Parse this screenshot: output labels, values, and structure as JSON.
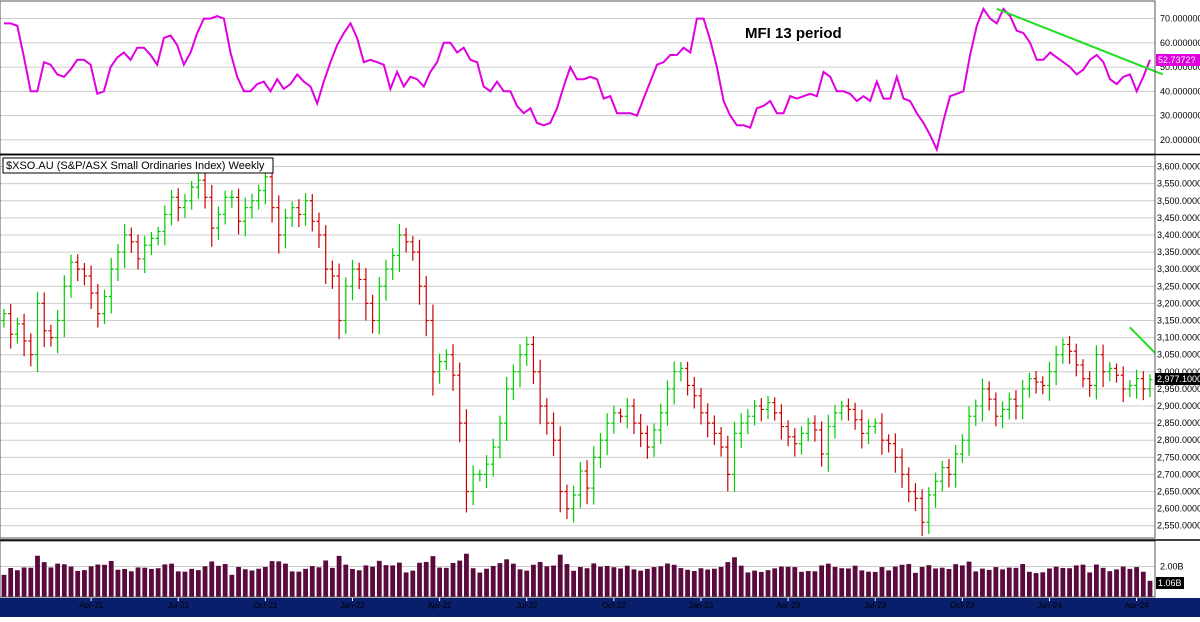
{
  "chart_data": [
    {
      "type": "line",
      "panel": "indicator",
      "title": "MFI 13 period",
      "y_ticks": [
        "70.000000",
        "60.000000",
        "50.000000",
        "40.000000",
        "30.000000",
        "20.000000"
      ],
      "y_tick_values": [
        70,
        60,
        50,
        40,
        30,
        20
      ],
      "ylim": [
        15,
        76
      ],
      "last_value_label": "52.7372?",
      "series": [
        {
          "color": "#e000e0",
          "values": [
            68,
            68,
            67,
            54,
            40,
            40,
            52,
            51,
            47,
            46,
            49,
            53,
            53,
            51,
            39,
            40,
            50,
            54,
            56,
            53,
            58,
            58,
            55,
            51,
            62,
            63,
            59,
            51,
            56,
            64,
            70,
            70,
            71,
            70,
            56,
            46,
            40,
            40,
            43,
            44,
            40,
            45,
            41,
            43,
            47,
            44,
            42,
            35,
            44,
            52,
            59,
            64,
            68,
            62,
            52,
            53,
            52,
            51,
            41,
            48,
            42,
            46,
            45,
            42,
            48,
            52,
            60,
            60,
            56,
            58,
            53,
            52,
            42,
            40,
            44,
            40,
            40,
            34,
            31,
            33,
            27,
            26,
            27,
            33,
            42,
            50,
            45,
            45,
            46,
            45,
            37,
            38,
            31,
            31,
            31,
            30,
            37,
            44,
            51,
            52,
            55,
            55,
            58,
            56,
            70,
            70,
            61,
            50,
            36,
            30,
            26,
            26,
            25,
            33,
            34,
            36,
            31,
            31,
            38,
            37,
            38,
            39,
            38,
            48,
            46,
            40,
            40,
            39,
            36,
            38,
            36,
            44,
            37,
            37,
            46,
            37,
            36,
            31,
            27,
            22,
            16,
            28,
            38,
            39,
            40,
            55,
            67,
            74,
            70,
            68,
            74,
            71,
            65,
            64,
            60,
            53,
            53,
            56,
            54,
            52,
            50,
            47,
            49,
            53,
            55,
            52,
            45,
            43,
            46,
            47,
            40,
            46,
            53
          ]
        },
        {
          "name": "",
          "type": "trendline",
          "color": "#22dd22",
          "x_index": [
            149,
            173
          ],
          "values": [
            74,
            47
          ]
        }
      ]
    },
    {
      "type": "ohlc",
      "panel": "price",
      "title": "$XSO.AU (S&P/ASX Small Ordinaries Index) Weekly",
      "y_ticks": [
        "3,600.0000",
        "3,550.0000",
        "3,500.0000",
        "3,450.0000",
        "3,400.0000",
        "3,350.0000",
        "3,300.0000",
        "3,250.0000",
        "3,200.0000",
        "3,150.0000",
        "3,100.0000",
        "3,050.0000",
        "3,000.0000",
        "2,950.0000",
        "2,900.0000",
        "2,850.0000",
        "2,800.0000",
        "2,750.0000",
        "2,700.0000",
        "2,650.0000",
        "2,600.0000",
        "2,550.0000"
      ],
      "y_tick_values": [
        3600,
        3550,
        3500,
        3450,
        3400,
        3350,
        3300,
        3250,
        3200,
        3150,
        3100,
        3050,
        3000,
        2950,
        2900,
        2850,
        2800,
        2750,
        2700,
        2650,
        2600,
        2550
      ],
      "ylim": [
        2520,
        3625
      ],
      "last_value_label": "2,977.1000",
      "last_value": 2977.1,
      "up_color": "#00cc00",
      "down_color": "#cc0000",
      "closes": [
        3170,
        3110,
        3140,
        3090,
        3050,
        3200,
        3120,
        3100,
        3150,
        3250,
        3320,
        3300,
        3280,
        3230,
        3170,
        3220,
        3300,
        3350,
        3400,
        3380,
        3330,
        3370,
        3390,
        3410,
        3460,
        3510,
        3480,
        3500,
        3540,
        3560,
        3510,
        3420,
        3460,
        3510,
        3510,
        3440,
        3480,
        3500,
        3530,
        3570,
        3480,
        3400,
        3450,
        3480,
        3460,
        3500,
        3440,
        3400,
        3300,
        3280,
        3150,
        3250,
        3300,
        3270,
        3200,
        3150,
        3250,
        3300,
        3340,
        3400,
        3380,
        3350,
        3250,
        3150,
        3000,
        3030,
        3050,
        2990,
        2850,
        2650,
        2700,
        2700,
        2730,
        2780,
        2850,
        2950,
        3000,
        3050,
        3080,
        3000,
        2900,
        2850,
        2800,
        2650,
        2600,
        2640,
        2710,
        2660,
        2750,
        2800,
        2850,
        2880,
        2870,
        2900,
        2850,
        2820,
        2780,
        2830,
        2880,
        2950,
        3000,
        3010,
        2960,
        2930,
        2880,
        2850,
        2820,
        2780,
        2700,
        2820,
        2850,
        2870,
        2900,
        2890,
        2910,
        2880,
        2840,
        2810,
        2790,
        2820,
        2850,
        2830,
        2760,
        2840,
        2880,
        2900,
        2890,
        2860,
        2820,
        2840,
        2850,
        2800,
        2790,
        2750,
        2700,
        2650,
        2630,
        2560,
        2640,
        2680,
        2720,
        2700,
        2760,
        2800,
        2870,
        2900,
        2950,
        2920,
        2870,
        2890,
        2920,
        2900,
        2950,
        2980,
        2970,
        2960,
        3000,
        3050,
        3080,
        3060,
        3020,
        2980,
        2960,
        3050,
        3000,
        3010,
        2990,
        2950,
        2960,
        2980,
        2950,
        2977
      ]
    },
    {
      "type": "bar",
      "panel": "volume",
      "y_ticks": [
        "2.00B"
      ],
      "y_tick_values": [
        2.0
      ],
      "ylim": [
        0,
        3.6
      ],
      "last_value_label": "1.06B",
      "color": "#5a0a3c"
    }
  ],
  "x_axis": {
    "labels": [
      "Apr-21",
      "Jul-21",
      "Oct-21",
      "Jan-22",
      "Apr-22",
      "Jul-22",
      "Oct-22",
      "Jan-23",
      "Apr-23",
      "Jul-23",
      "Oct-23",
      "Jan-24",
      "Apr-24",
      "Jul-24"
    ],
    "label_bar_index": [
      13,
      26,
      39,
      52,
      65,
      78,
      91,
      104,
      117,
      130,
      143,
      156,
      169,
      182
    ]
  },
  "colors": {
    "axis_bar": "#0a1f6b",
    "grid": "#cccccc",
    "mfi_line": "#e000e0",
    "trendline": "#22dd22"
  }
}
